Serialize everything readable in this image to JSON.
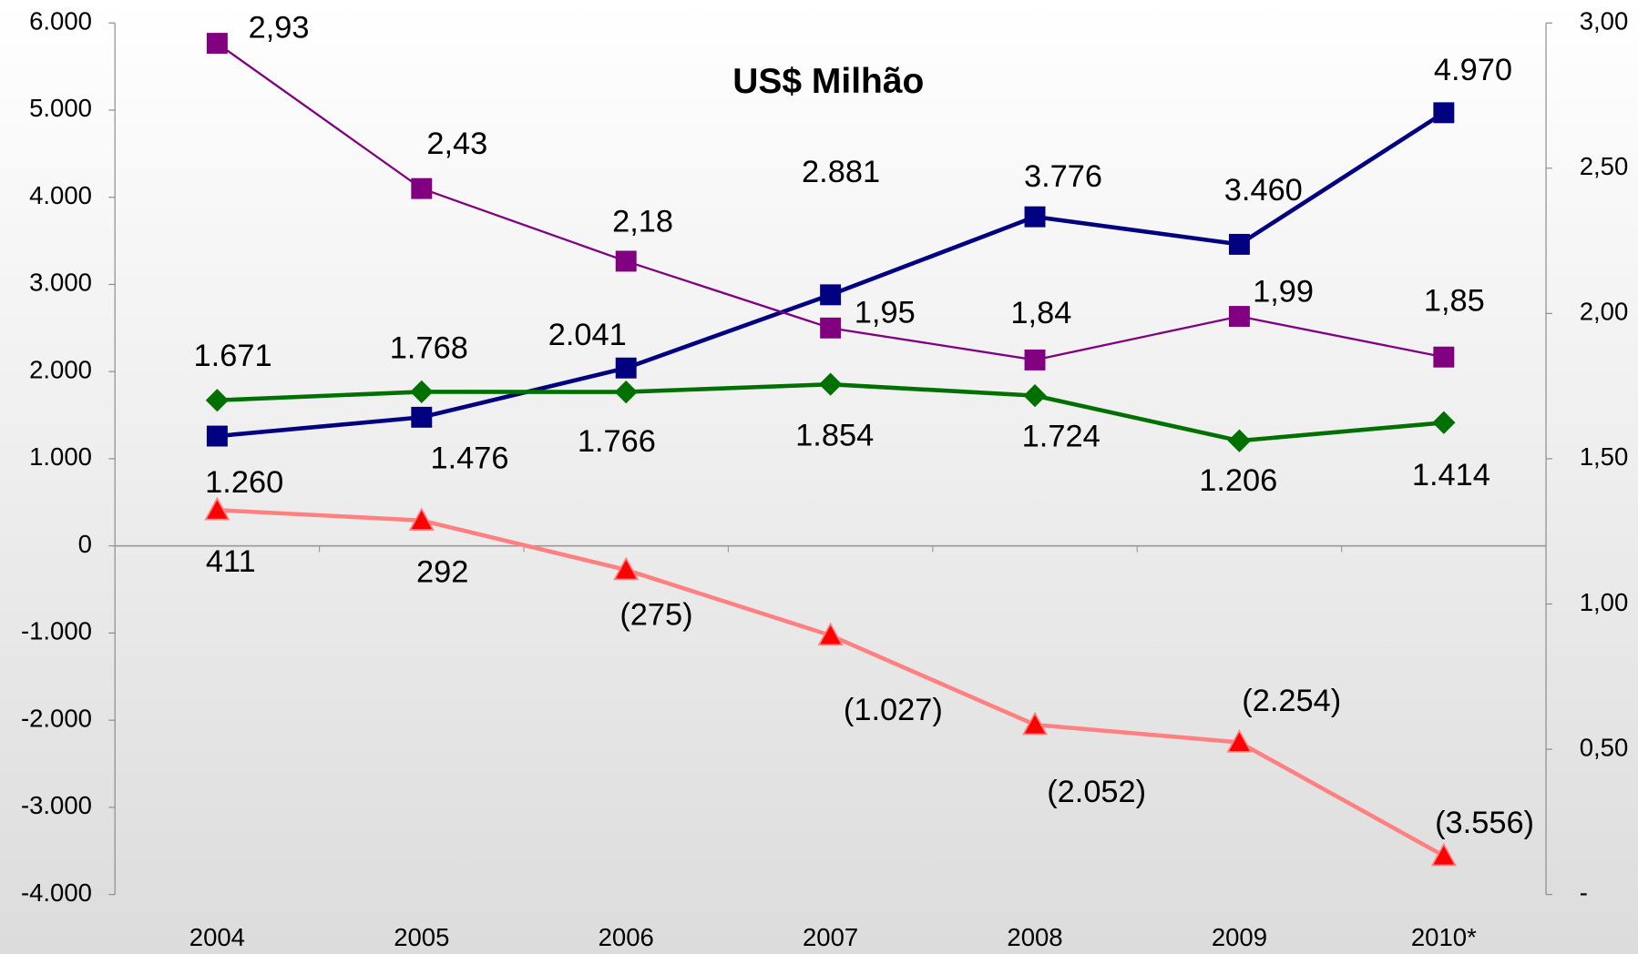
{
  "chart_data": {
    "type": "line",
    "title": "US$ Milhão",
    "categories": [
      "2004",
      "2005",
      "2006",
      "2007",
      "2008",
      "2009",
      "2010*"
    ],
    "series": [
      {
        "color": "#000080",
        "marker": "square",
        "values": [
          1260,
          1476,
          2041,
          2881,
          3776,
          3460,
          4970
        ],
        "value_labels": [
          "1.260",
          "1.476",
          "2.041",
          "2.881",
          "3.776",
          "3.460",
          "4.970"
        ]
      },
      {
        "color": "#007000",
        "marker": "diamond",
        "values": [
          1671,
          1768,
          1766,
          1854,
          1724,
          1206,
          1414
        ],
        "value_labels": [
          "1.671",
          "1.768",
          "1.766",
          "1.854",
          "1.724",
          "1.206",
          "1.414"
        ]
      },
      {
        "color": "#ff8080",
        "marker_color": "#ff0000",
        "marker": "triangle",
        "values": [
          411,
          292,
          -275,
          -1027,
          -2052,
          -2254,
          -3556
        ],
        "value_labels": [
          "411",
          "292",
          "(275)",
          "(1.027)",
          "(2.052)",
          "(2.254)",
          "(3.556)"
        ]
      },
      {
        "color": "#800080",
        "marker": "square",
        "axis": "y2",
        "values": [
          2.93,
          2.43,
          2.18,
          1.95,
          1.84,
          1.99,
          1.85
        ],
        "value_labels": [
          "2,93",
          "2,43",
          "2,18",
          "1,95",
          "1,84",
          "1,99",
          "1,85"
        ]
      }
    ],
    "ylim": [
      -4000,
      6000
    ],
    "yticks": [
      {
        "value": -4000,
        "label": "-4.000"
      },
      {
        "value": -3000,
        "label": "-3.000"
      },
      {
        "value": -2000,
        "label": "-2.000"
      },
      {
        "value": -1000,
        "label": "-1.000"
      },
      0,
      {
        "value": 1000,
        "label": "1.000"
      },
      {
        "value": 2000,
        "label": "2.000"
      },
      {
        "value": 3000,
        "label": "3.000"
      },
      {
        "value": 4000,
        "label": "4.000"
      },
      {
        "value": 5000,
        "label": "5.000"
      },
      {
        "value": 6000,
        "label": "6.000"
      }
    ],
    "y2lim": [
      0,
      3
    ],
    "y2ticks": [
      {
        "value": 0,
        "label": "-"
      },
      {
        "value": 0.5,
        "label": "0,50"
      },
      {
        "value": 1,
        "label": "1,00"
      },
      {
        "value": 1.5,
        "label": "1,50"
      },
      {
        "value": 2,
        "label": "2,00"
      },
      {
        "value": 2.5,
        "label": "2,50"
      },
      {
        "value": 3,
        "label": "3,00"
      }
    ]
  }
}
